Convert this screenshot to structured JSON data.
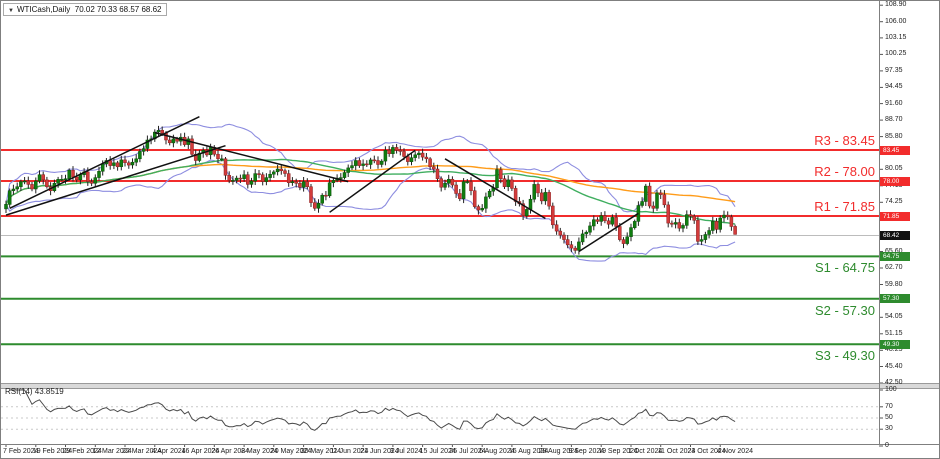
{
  "window": {
    "symbol_text": "WTICash,Daily",
    "quote_text": "70.02 70.33 68.57 68.62",
    "dropdown_glyph": "▼"
  },
  "rsi_pane": {
    "indicator_name": "RSI(14)",
    "indicator_value": "43.8519"
  },
  "chart_data": {
    "type": "candlestick",
    "symbol": "WTICash",
    "timeframe": "Daily",
    "title": "WTICash,Daily 70.02 70.33 68.57 68.62",
    "last_bar": {
      "open": 70.02,
      "high": 70.33,
      "low": 68.57,
      "close": 68.62
    },
    "current_price": 68.42,
    "y_axis_ticks": [
      108.9,
      106.0,
      103.15,
      100.25,
      97.35,
      94.45,
      91.6,
      88.7,
      85.8,
      82.9,
      80.05,
      77.15,
      74.25,
      71.35,
      68.45,
      65.6,
      62.7,
      59.8,
      56.9,
      54.05,
      51.15,
      48.25,
      45.4,
      42.5
    ],
    "x_tick_labels": [
      "7 Feb 2024",
      "19 Feb 2024",
      "29 Feb 2024",
      "12 Mar 2024",
      "22 Mar 2024",
      "4 Apr 2024",
      "16 Apr 2024",
      "26 Apr 2024",
      "8 May 2024",
      "20 May 2024",
      "30 May 2024",
      "11 Jun 2024",
      "21 Jun 2024",
      "3 Jul 2024",
      "15 Jul 2024",
      "25 Jul 2024",
      "6 Aug 2024",
      "16 Aug 2024",
      "28 Aug 2024",
      "9 Sep 2024",
      "19 Sep 2024",
      "1 Oct 2024",
      "11 Oct 2024",
      "23 Oct 2024",
      "4 Nov 2024"
    ],
    "bars_per_x_tick": 8,
    "levels": [
      {
        "name": "R3",
        "label": "R3 - 83.45",
        "value": 83.45,
        "kind": "resistance",
        "color": "#f22c2c"
      },
      {
        "name": "R2",
        "label": "R2 - 78.00",
        "value": 78.0,
        "kind": "resistance",
        "color": "#f22c2c"
      },
      {
        "name": "R1",
        "label": "R1 - 71.85",
        "value": 71.85,
        "kind": "resistance",
        "color": "#f22c2c"
      },
      {
        "name": "S1",
        "label": "S1 - 64.75",
        "value": 64.75,
        "kind": "support",
        "color": "#2e8b2e"
      },
      {
        "name": "S2",
        "label": "S2 - 57.30",
        "value": 57.3,
        "kind": "support",
        "color": "#2e8b2e"
      },
      {
        "name": "S3",
        "label": "S3 - 49.30",
        "value": 49.3,
        "kind": "support",
        "color": "#2e8b2e"
      }
    ],
    "closes": [
      73.9,
      76.3,
      76.6,
      77.0,
      77.9,
      78.0,
      77.4,
      76.6,
      78.0,
      79.1,
      78.2,
      77.0,
      76.3,
      77.6,
      78.3,
      78.3,
      78.4,
      79.9,
      78.7,
      78.2,
      79.1,
      79.6,
      77.9,
      77.6,
      78.6,
      79.7,
      81.0,
      81.6,
      80.7,
      81.2,
      80.5,
      81.7,
      81.2,
      80.8,
      81.3,
      81.9,
      83.2,
      83.7,
      85.2,
      85.4,
      86.6,
      86.9,
      86.4,
      85.2,
      84.7,
      85.4,
      85.0,
      85.7,
      84.4,
      85.4,
      82.7,
      81.6,
      82.9,
      83.4,
      82.6,
      83.9,
      82.7,
      81.9,
      81.9,
      79.0,
      78.1,
      78.1,
      78.5,
      78.4,
      79.1,
      77.4,
      78.0,
      79.3,
      79.1,
      77.9,
      78.6,
      79.2,
      79.6,
      80.1,
      79.8,
      79.3,
      77.7,
      77.9,
      77.6,
      76.9,
      77.9,
      77.0,
      74.2,
      73.2,
      74.1,
      75.5,
      75.4,
      77.7,
      78.1,
      78.5,
      78.6,
      79.5,
      80.3,
      80.7,
      81.6,
      80.7,
      81.0,
      80.9,
      81.7,
      81.6,
      80.9,
      81.5,
      83.4,
      82.8,
      83.9,
      83.4,
      83.2,
      82.3,
      81.4,
      82.1,
      82.6,
      82.9,
      82.2,
      81.9,
      80.5,
      80.1,
      78.4,
      76.9,
      77.6,
      78.3,
      77.3,
      75.8,
      74.9,
      77.9,
      77.9,
      76.3,
      73.5,
      72.9,
      73.2,
      75.2,
      76.2,
      76.8,
      80.0,
      78.4,
      77.0,
      78.2,
      76.7,
      74.4,
      74.0,
      71.9,
      73.0,
      74.8,
      77.4,
      75.9,
      74.5,
      76.0,
      73.6,
      70.3,
      69.2,
      68.5,
      67.7,
      66.8,
      66.2,
      65.8,
      67.3,
      68.7,
      69.0,
      70.1,
      71.2,
      70.9,
      71.9,
      71.0,
      70.4,
      71.6,
      70.0,
      67.7,
      67.0,
      68.2,
      69.8,
      70.9,
      73.7,
      74.4,
      77.1,
      73.6,
      73.2,
      75.9,
      75.6,
      73.8,
      70.6,
      70.4,
      70.7,
      69.7,
      70.2,
      72.1,
      71.8,
      71.1,
      67.4,
      67.7,
      68.6,
      69.3,
      70.9,
      69.5,
      71.5,
      72.0,
      71.7,
      70.0,
      68.62
    ],
    "trendlines": [
      {
        "name": "rising-channel-top",
        "from": [
          1,
          73.2
        ],
        "to": [
          52,
          89.3
        ]
      },
      {
        "name": "rising-channel-bottom",
        "from": [
          0,
          72.0
        ],
        "to": [
          59,
          84.2
        ]
      },
      {
        "name": "april-peak-downtrend",
        "from": [
          40,
          86.5
        ],
        "to": [
          92,
          77.9
        ]
      },
      {
        "name": "june-july-uptrend",
        "from": [
          87,
          72.5
        ],
        "to": [
          110,
          83.4
        ]
      },
      {
        "name": "july-august-downtrend",
        "from": [
          118,
          81.9
        ],
        "to": [
          145,
          71.4
        ]
      },
      {
        "name": "september-uptrend",
        "from": [
          154,
          65.6
        ],
        "to": [
          170,
          72.3
        ]
      }
    ],
    "indicators": {
      "bollinger": {
        "period": 20,
        "deviation": 2,
        "color": "#8d8de0"
      },
      "sma_fast": {
        "period": 50,
        "color": "#3fae5f"
      },
      "sma_slow": {
        "period": 100,
        "color": "#ff9c1a"
      },
      "rsi": {
        "period": 14,
        "value": 43.8519,
        "scale_ticks": [
          100,
          70,
          50,
          30,
          0
        ],
        "dashed_levels": [
          70,
          50,
          30
        ],
        "color": "#4a4a4a"
      }
    },
    "colors": {
      "bull_body": "#0f7d0f",
      "bull_border": "#0a4d0a",
      "bear_body": "#d23b3b",
      "bear_border": "#8a1f1f",
      "wick": "#222222",
      "current_price_line": "#bcbcbc",
      "current_price_badge_bg": "#111111",
      "trendline": "#111111",
      "axis_text": "#222222"
    }
  }
}
